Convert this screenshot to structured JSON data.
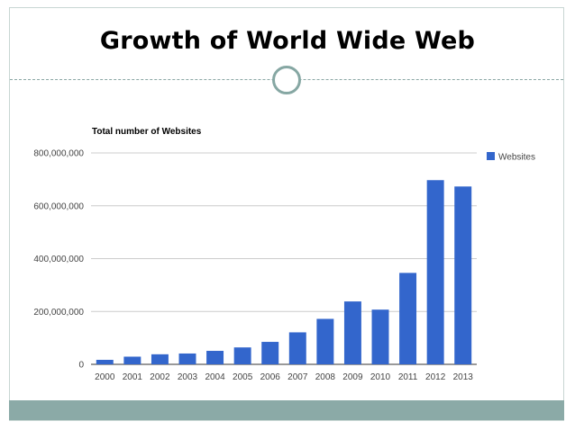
{
  "slide": {
    "title": "Growth of World Wide Web"
  },
  "colors": {
    "bar": "#3366cc",
    "grid": "#cccccc",
    "accent": "#8baaa7"
  },
  "chart_data": {
    "type": "bar",
    "title": "Total number of Websites",
    "xlabel": "",
    "ylabel": "",
    "categories": [
      "2000",
      "2001",
      "2002",
      "2003",
      "2004",
      "2005",
      "2006",
      "2007",
      "2008",
      "2009",
      "2010",
      "2011",
      "2012",
      "2013"
    ],
    "series": [
      {
        "name": "Websites",
        "values": [
          17000000,
          29000000,
          38000000,
          41000000,
          51000000,
          64000000,
          85000000,
          121000000,
          172000000,
          238000000,
          207000000,
          346000000,
          697000000,
          673000000
        ]
      }
    ],
    "ylim": [
      0,
      800000000
    ],
    "yticks": [
      0,
      200000000,
      400000000,
      600000000,
      800000000
    ],
    "ytick_labels": [
      "0",
      "200,000,000",
      "400,000,000",
      "600,000,000",
      "800,000,000"
    ],
    "grid": true,
    "legend": "right"
  }
}
